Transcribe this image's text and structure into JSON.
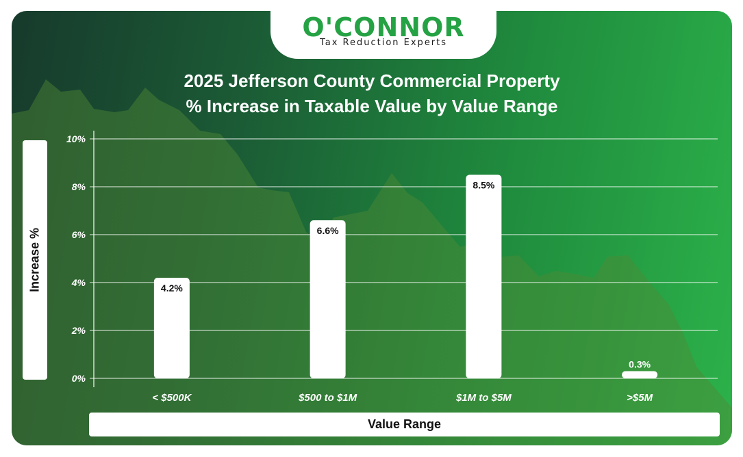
{
  "brand": {
    "name": "O'CONNOR",
    "tagline": "Tax Reduction Experts",
    "color": "#25a244"
  },
  "chart_data": {
    "type": "bar",
    "title_line1": "2025 Jefferson County Commercial Property",
    "title_line2": "% Increase in Taxable Value by Value Range",
    "xlabel": "Value Range",
    "ylabel": "Increase %",
    "categories": [
      "< $500K",
      "$500 to $1M",
      "$1M to $5M",
      ">$5M"
    ],
    "values": [
      4.2,
      6.6,
      8.5,
      0.3
    ],
    "data_labels": [
      "4.2%",
      "6.6%",
      "8.5%",
      "0.3%"
    ],
    "ylim": [
      0,
      10
    ],
    "yticks": [
      "0%",
      "2%",
      "4%",
      "6%",
      "8%",
      "10%"
    ],
    "grid": true,
    "bar_color": "#ffffff",
    "gridline_color": "#ffffff"
  }
}
